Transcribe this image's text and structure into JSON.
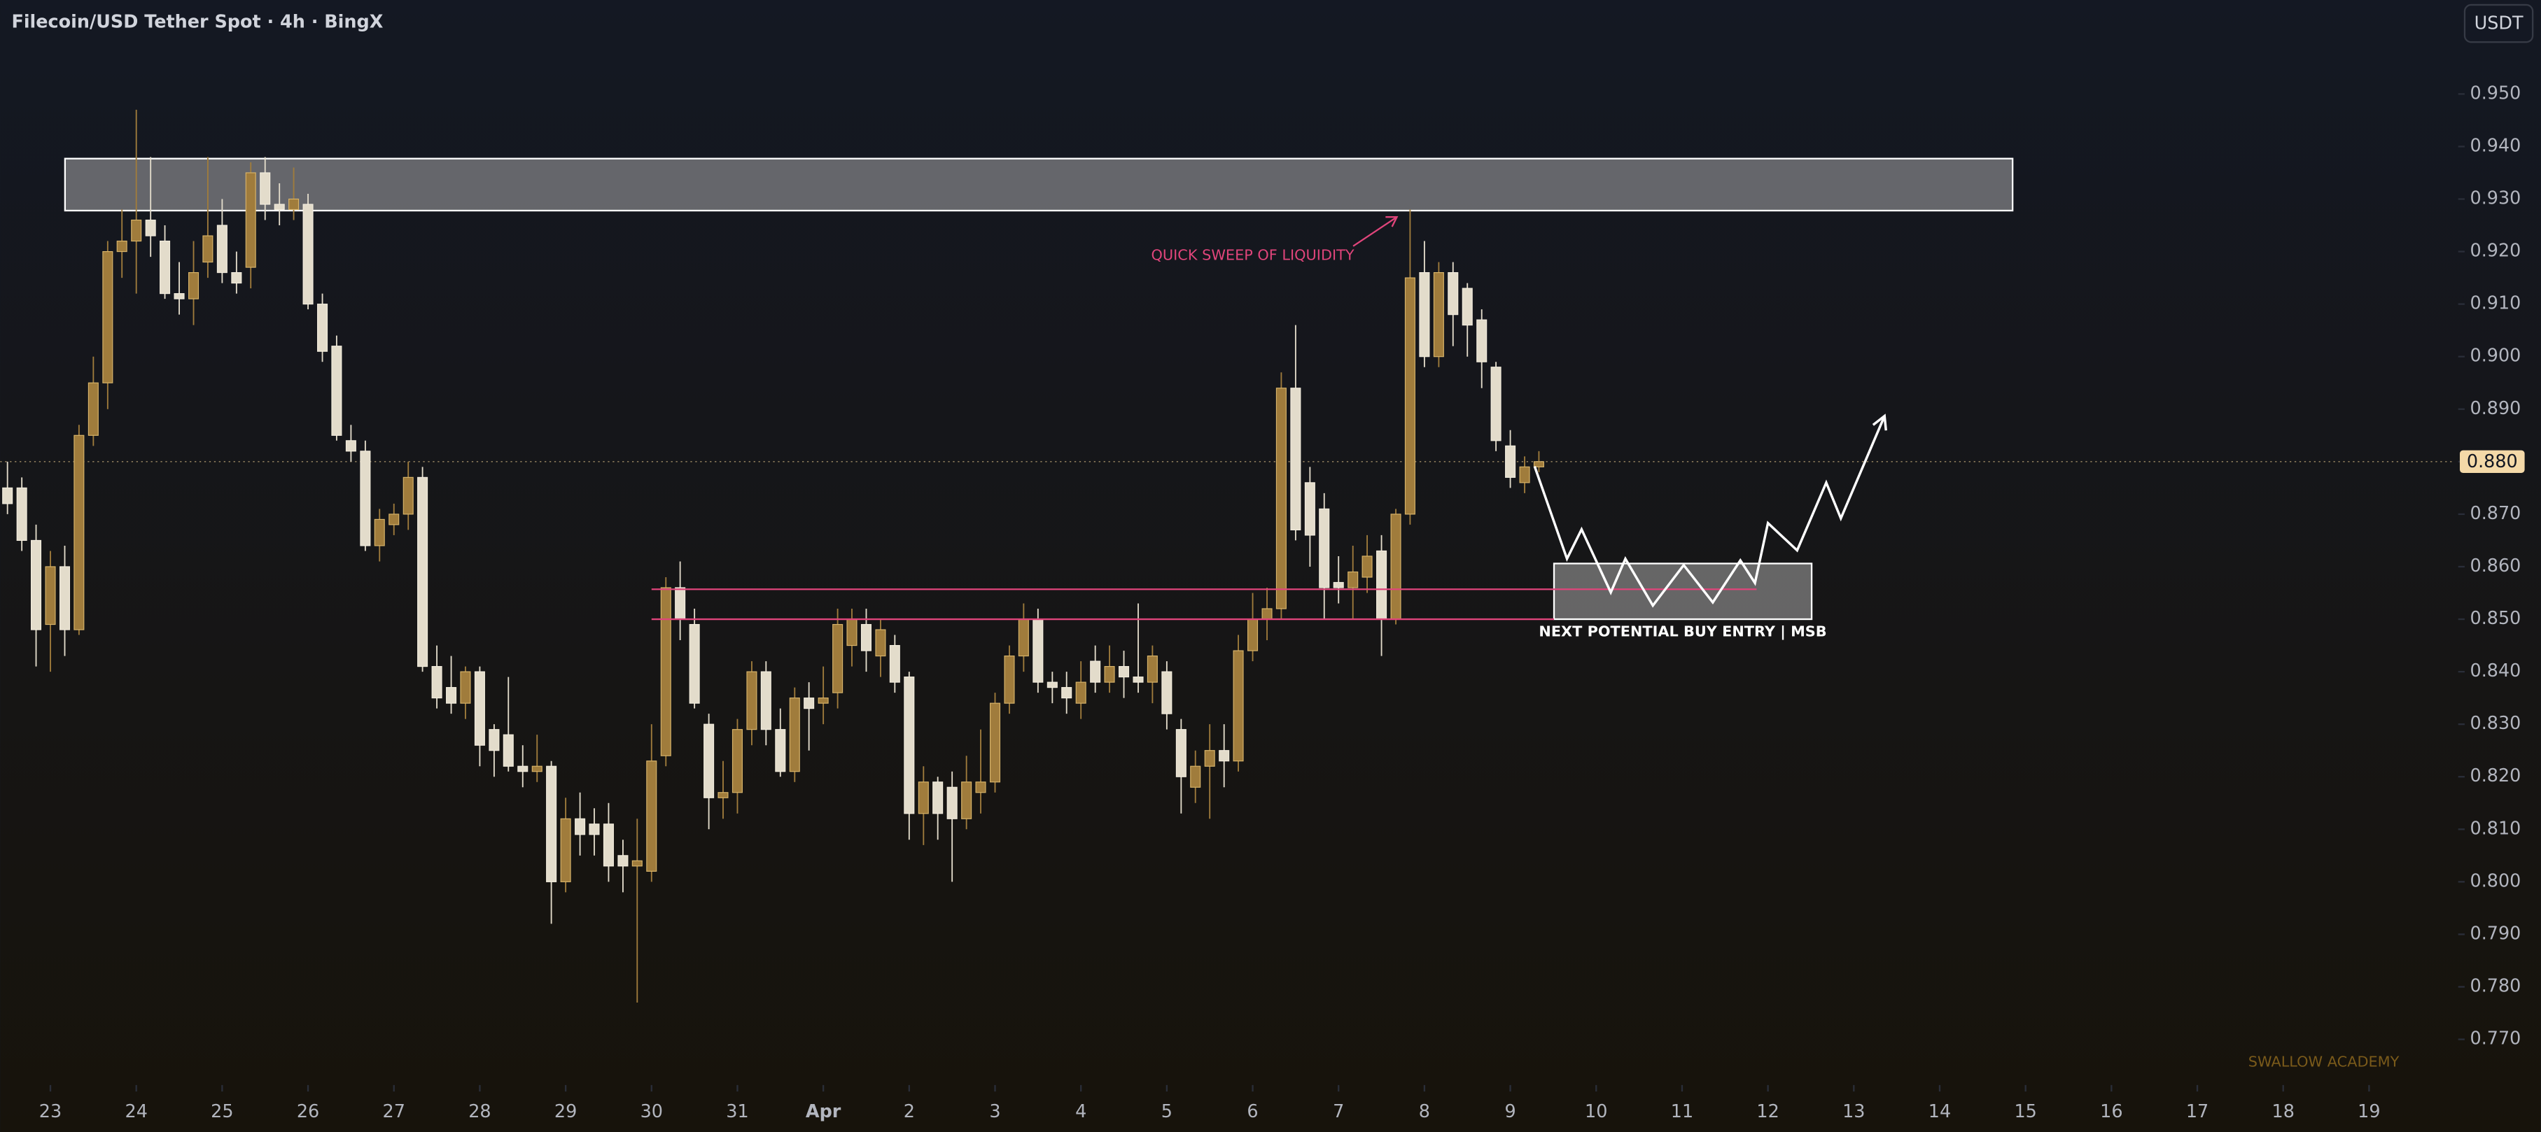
{
  "chart_data": {
    "type": "candlestick",
    "title": "Filecoin/USD Tether Spot · 4h · BingX",
    "currency": "USDT",
    "watermark": "SWALLOW ACADEMY",
    "up_color": "#a07c3c",
    "down_color": "#e3dccb",
    "xlim": [
      -0.585,
      28.0
    ],
    "ylim": [
      0.7613,
      0.9679
    ],
    "xticks": [
      {
        "value": 0,
        "label": "23"
      },
      {
        "value": 1,
        "label": "24"
      },
      {
        "value": 2,
        "label": "25"
      },
      {
        "value": 3,
        "label": "26"
      },
      {
        "value": 4,
        "label": "27"
      },
      {
        "value": 5,
        "label": "28"
      },
      {
        "value": 6,
        "label": "29"
      },
      {
        "value": 7,
        "label": "30"
      },
      {
        "value": 8,
        "label": "31"
      },
      {
        "value": 9,
        "label": "Apr"
      },
      {
        "value": 10,
        "label": "2"
      },
      {
        "value": 11,
        "label": "3"
      },
      {
        "value": 12,
        "label": "4"
      },
      {
        "value": 13,
        "label": "5"
      },
      {
        "value": 14,
        "label": "6"
      },
      {
        "value": 15,
        "label": "7"
      },
      {
        "value": 16,
        "label": "8"
      },
      {
        "value": 17,
        "label": "9"
      },
      {
        "value": 18,
        "label": "10"
      },
      {
        "value": 19,
        "label": "11"
      },
      {
        "value": 20,
        "label": "12"
      },
      {
        "value": 21,
        "label": "13"
      },
      {
        "value": 22,
        "label": "14"
      },
      {
        "value": 23,
        "label": "15"
      },
      {
        "value": 24,
        "label": "16"
      },
      {
        "value": 25,
        "label": "17"
      },
      {
        "value": 26,
        "label": "18"
      },
      {
        "value": 27,
        "label": "19"
      }
    ],
    "yticks": [
      {
        "value": 0.77,
        "label": "0.770"
      },
      {
        "value": 0.78,
        "label": "0.780"
      },
      {
        "value": 0.79,
        "label": "0.790"
      },
      {
        "value": 0.8,
        "label": "0.800"
      },
      {
        "value": 0.81,
        "label": "0.810"
      },
      {
        "value": 0.82,
        "label": "0.820"
      },
      {
        "value": 0.83,
        "label": "0.830"
      },
      {
        "value": 0.84,
        "label": "0.840"
      },
      {
        "value": 0.85,
        "label": "0.850"
      },
      {
        "value": 0.86,
        "label": "0.860"
      },
      {
        "value": 0.87,
        "label": "0.870"
      },
      {
        "value": 0.88,
        "label": "0.880"
      },
      {
        "value": 0.89,
        "label": "0.890"
      },
      {
        "value": 0.9,
        "label": "0.900"
      },
      {
        "value": 0.91,
        "label": "0.910"
      },
      {
        "value": 0.92,
        "label": "0.920"
      },
      {
        "value": 0.93,
        "label": "0.930"
      },
      {
        "value": 0.94,
        "label": "0.940"
      },
      {
        "value": 0.95,
        "label": "0.950"
      }
    ],
    "last_price": {
      "value": 0.88,
      "label": "0.880"
    },
    "x": [
      -0.5,
      -0.333,
      -0.167,
      0,
      0.167,
      0.333,
      0.5,
      0.667,
      0.833,
      1,
      1.167,
      1.333,
      1.5,
      1.667,
      1.833,
      2,
      2.167,
      2.333,
      2.5,
      2.667,
      2.833,
      3,
      3.167,
      3.333,
      3.5,
      3.667,
      3.833,
      4,
      4.167,
      4.333,
      4.5,
      4.667,
      4.833,
      5,
      5.167,
      5.333,
      5.5,
      5.667,
      5.833,
      6,
      6.167,
      6.333,
      6.5,
      6.667,
      6.833,
      7,
      7.167,
      7.333,
      7.5,
      7.667,
      7.833,
      8,
      8.167,
      8.333,
      8.5,
      8.667,
      8.833,
      9,
      9.167,
      9.333,
      9.5,
      9.667,
      9.833,
      10,
      10.167,
      10.333,
      10.5,
      10.667,
      10.833,
      11,
      11.167,
      11.333,
      11.5,
      11.667,
      11.833,
      12,
      12.167,
      12.333,
      12.5,
      12.667,
      12.833,
      13,
      13.167,
      13.333,
      13.5,
      13.667,
      13.833,
      14,
      14.167,
      14.333,
      14.5,
      14.667,
      14.833,
      15,
      15.167,
      15.333,
      15.5,
      15.667,
      15.833,
      16,
      16.167,
      16.333,
      16.5,
      16.667,
      16.833,
      17,
      17.167,
      17.333
    ],
    "ohlc": [
      [
        0.875,
        0.88,
        0.87,
        0.872
      ],
      [
        0.875,
        0.877,
        0.863,
        0.865
      ],
      [
        0.865,
        0.868,
        0.841,
        0.848
      ],
      [
        0.849,
        0.863,
        0.84,
        0.86
      ],
      [
        0.86,
        0.864,
        0.843,
        0.848
      ],
      [
        0.848,
        0.887,
        0.847,
        0.885
      ],
      [
        0.885,
        0.9,
        0.883,
        0.895
      ],
      [
        0.895,
        0.922,
        0.89,
        0.92
      ],
      [
        0.92,
        0.928,
        0.915,
        0.922
      ],
      [
        0.922,
        0.947,
        0.912,
        0.926
      ],
      [
        0.926,
        0.938,
        0.919,
        0.923
      ],
      [
        0.922,
        0.925,
        0.911,
        0.912
      ],
      [
        0.912,
        0.918,
        0.908,
        0.911
      ],
      [
        0.911,
        0.922,
        0.906,
        0.916
      ],
      [
        0.918,
        0.938,
        0.915,
        0.923
      ],
      [
        0.925,
        0.93,
        0.914,
        0.916
      ],
      [
        0.916,
        0.92,
        0.912,
        0.914
      ],
      [
        0.917,
        0.937,
        0.913,
        0.935
      ],
      [
        0.935,
        0.938,
        0.926,
        0.929
      ],
      [
        0.929,
        0.933,
        0.925,
        0.928
      ],
      [
        0.928,
        0.936,
        0.926,
        0.93
      ],
      [
        0.929,
        0.931,
        0.909,
        0.91
      ],
      [
        0.91,
        0.912,
        0.899,
        0.901
      ],
      [
        0.902,
        0.904,
        0.884,
        0.885
      ],
      [
        0.884,
        0.887,
        0.88,
        0.882
      ],
      [
        0.882,
        0.884,
        0.863,
        0.864
      ],
      [
        0.864,
        0.871,
        0.861,
        0.869
      ],
      [
        0.868,
        0.872,
        0.866,
        0.87
      ],
      [
        0.87,
        0.88,
        0.867,
        0.877
      ],
      [
        0.877,
        0.879,
        0.84,
        0.841
      ],
      [
        0.841,
        0.845,
        0.833,
        0.835
      ],
      [
        0.837,
        0.843,
        0.832,
        0.834
      ],
      [
        0.834,
        0.841,
        0.831,
        0.84
      ],
      [
        0.84,
        0.841,
        0.822,
        0.826
      ],
      [
        0.829,
        0.83,
        0.82,
        0.825
      ],
      [
        0.828,
        0.839,
        0.821,
        0.822
      ],
      [
        0.822,
        0.826,
        0.818,
        0.821
      ],
      [
        0.821,
        0.828,
        0.819,
        0.822
      ],
      [
        0.822,
        0.823,
        0.792,
        0.8
      ],
      [
        0.8,
        0.816,
        0.798,
        0.812
      ],
      [
        0.812,
        0.817,
        0.805,
        0.809
      ],
      [
        0.811,
        0.814,
        0.805,
        0.809
      ],
      [
        0.811,
        0.815,
        0.8,
        0.803
      ],
      [
        0.805,
        0.808,
        0.798,
        0.803
      ],
      [
        0.803,
        0.812,
        0.777,
        0.804
      ],
      [
        0.802,
        0.83,
        0.8,
        0.823
      ],
      [
        0.824,
        0.858,
        0.822,
        0.856
      ],
      [
        0.856,
        0.861,
        0.846,
        0.85
      ],
      [
        0.849,
        0.852,
        0.833,
        0.834
      ],
      [
        0.83,
        0.832,
        0.81,
        0.816
      ],
      [
        0.816,
        0.823,
        0.812,
        0.817
      ],
      [
        0.817,
        0.831,
        0.813,
        0.829
      ],
      [
        0.829,
        0.842,
        0.826,
        0.84
      ],
      [
        0.84,
        0.842,
        0.826,
        0.829
      ],
      [
        0.829,
        0.833,
        0.82,
        0.821
      ],
      [
        0.821,
        0.837,
        0.819,
        0.835
      ],
      [
        0.835,
        0.838,
        0.825,
        0.833
      ],
      [
        0.834,
        0.841,
        0.83,
        0.835
      ],
      [
        0.836,
        0.852,
        0.833,
        0.849
      ],
      [
        0.845,
        0.852,
        0.841,
        0.85
      ],
      [
        0.849,
        0.852,
        0.84,
        0.844
      ],
      [
        0.843,
        0.85,
        0.839,
        0.848
      ],
      [
        0.845,
        0.847,
        0.836,
        0.838
      ],
      [
        0.839,
        0.84,
        0.808,
        0.813
      ],
      [
        0.813,
        0.822,
        0.807,
        0.819
      ],
      [
        0.819,
        0.82,
        0.808,
        0.813
      ],
      [
        0.818,
        0.821,
        0.8,
        0.812
      ],
      [
        0.812,
        0.824,
        0.81,
        0.819
      ],
      [
        0.817,
        0.829,
        0.813,
        0.819
      ],
      [
        0.819,
        0.836,
        0.817,
        0.834
      ],
      [
        0.834,
        0.845,
        0.832,
        0.843
      ],
      [
        0.843,
        0.853,
        0.84,
        0.85
      ],
      [
        0.85,
        0.852,
        0.836,
        0.838
      ],
      [
        0.838,
        0.84,
        0.834,
        0.837
      ],
      [
        0.837,
        0.84,
        0.832,
        0.835
      ],
      [
        0.834,
        0.842,
        0.831,
        0.838
      ],
      [
        0.842,
        0.845,
        0.836,
        0.838
      ],
      [
        0.838,
        0.845,
        0.836,
        0.841
      ],
      [
        0.841,
        0.844,
        0.835,
        0.839
      ],
      [
        0.839,
        0.853,
        0.836,
        0.838
      ],
      [
        0.838,
        0.845,
        0.834,
        0.843
      ],
      [
        0.84,
        0.842,
        0.829,
        0.832
      ],
      [
        0.829,
        0.831,
        0.813,
        0.82
      ],
      [
        0.818,
        0.825,
        0.815,
        0.822
      ],
      [
        0.822,
        0.83,
        0.812,
        0.825
      ],
      [
        0.825,
        0.83,
        0.818,
        0.823
      ],
      [
        0.823,
        0.847,
        0.821,
        0.844
      ],
      [
        0.844,
        0.855,
        0.842,
        0.85
      ],
      [
        0.85,
        0.856,
        0.846,
        0.852
      ],
      [
        0.852,
        0.897,
        0.85,
        0.894
      ],
      [
        0.894,
        0.906,
        0.865,
        0.867
      ],
      [
        0.876,
        0.879,
        0.86,
        0.866
      ],
      [
        0.871,
        0.874,
        0.85,
        0.856
      ],
      [
        0.857,
        0.862,
        0.853,
        0.856
      ],
      [
        0.856,
        0.864,
        0.85,
        0.859
      ],
      [
        0.858,
        0.866,
        0.855,
        0.862
      ],
      [
        0.863,
        0.866,
        0.843,
        0.85
      ],
      [
        0.85,
        0.871,
        0.849,
        0.87
      ],
      [
        0.87,
        0.928,
        0.868,
        0.915
      ],
      [
        0.916,
        0.922,
        0.898,
        0.9
      ],
      [
        0.9,
        0.918,
        0.898,
        0.916
      ],
      [
        0.916,
        0.918,
        0.902,
        0.908
      ],
      [
        0.913,
        0.914,
        0.9,
        0.906
      ],
      [
        0.907,
        0.909,
        0.894,
        0.899
      ],
      [
        0.898,
        0.899,
        0.882,
        0.884
      ],
      [
        0.883,
        0.886,
        0.875,
        0.877
      ],
      [
        0.876,
        0.881,
        0.874,
        0.879
      ],
      [
        0.879,
        0.882,
        0.878,
        0.88
      ]
    ],
    "zones": [
      {
        "x": [
          0.17,
          22.849
        ],
        "y": [
          0.9278,
          0.9377
        ]
      },
      {
        "x": [
          17.509,
          20.509
        ],
        "y": [
          0.85,
          0.8606
        ],
        "label": "NEXT POTENTIAL BUY ENTRY | MSB"
      }
    ],
    "levels": [
      {
        "x": [
          7,
          19.868
        ],
        "y": 0.8557
      },
      {
        "x": [
          7,
          17.509
        ],
        "y": 0.85
      }
    ],
    "projection": {
      "x": [
        17.283,
        17.66,
        17.83,
        18.17,
        18.34,
        18.66,
        19.019,
        19.358,
        19.679,
        19.849,
        20.0,
        20.34,
        20.679,
        20.849,
        21.358
      ],
      "y": [
        0.8791,
        0.8615,
        0.8671,
        0.8551,
        0.8615,
        0.8526,
        0.8603,
        0.8532,
        0.8612,
        0.8569,
        0.8683,
        0.8631,
        0.876,
        0.8692,
        0.8887
      ]
    },
    "annotation": "QUICK SWEEP OF LIQUIDITY"
  }
}
